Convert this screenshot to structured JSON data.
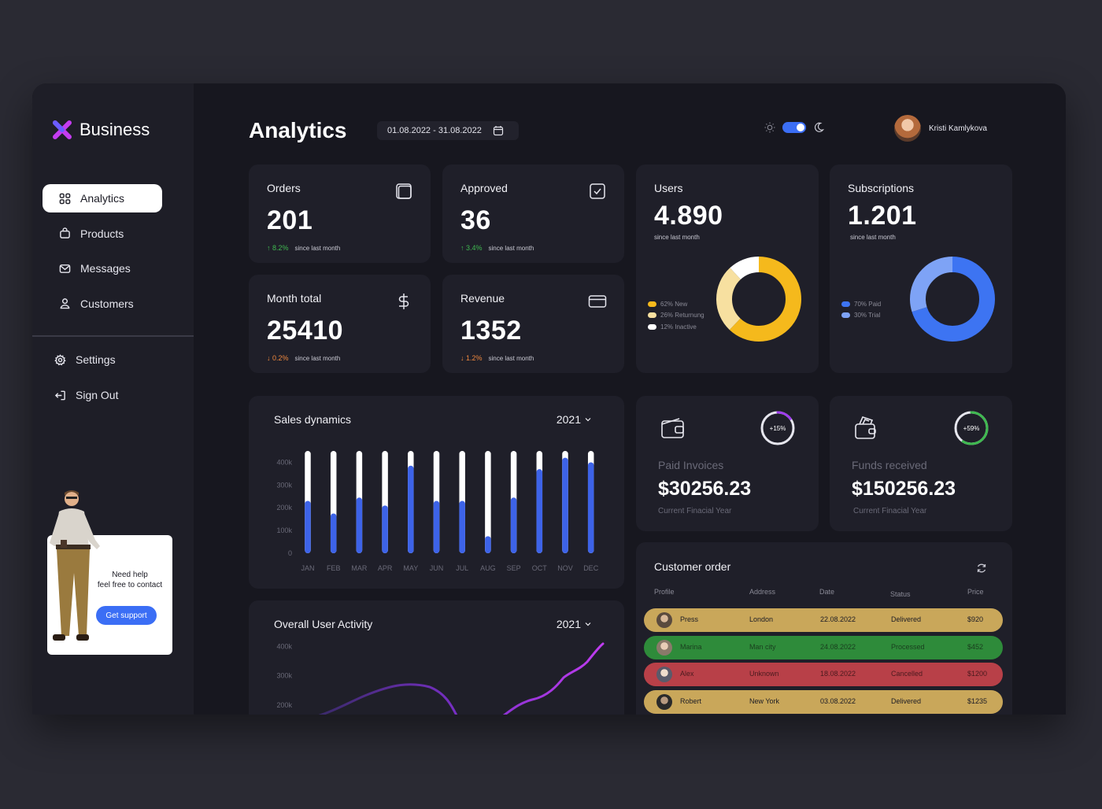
{
  "app": {
    "brand": "Business"
  },
  "sidebar": {
    "items": [
      {
        "label": "Analytics",
        "icon": "grid-icon",
        "active": true
      },
      {
        "label": "Products",
        "icon": "shopping-bag-icon"
      },
      {
        "label": "Messages",
        "icon": "mail-icon"
      },
      {
        "label": "Customers",
        "icon": "user-icon"
      }
    ],
    "secondary": [
      {
        "label": "Settings",
        "icon": "gear-icon"
      },
      {
        "label": "Sign Out",
        "icon": "sign-out-icon"
      }
    ],
    "help": {
      "line1": "Need help",
      "line2": "feel free to contact",
      "button": "Get support"
    }
  },
  "header": {
    "title": "Analytics",
    "date_range": "01.08.2022 - 31.08.2022",
    "user_name": "Kristi Kamlykova"
  },
  "stats": {
    "orders": {
      "label": "Orders",
      "value": "201",
      "change": "8.2%",
      "direction": "up",
      "note": "since last month"
    },
    "approved": {
      "label": "Approved",
      "value": "36",
      "change": "3.4%",
      "direction": "up",
      "note": "since last month"
    },
    "month_total": {
      "label": "Month total",
      "value": "25410",
      "change": "0.2%",
      "direction": "down",
      "note": "since last month"
    },
    "revenue": {
      "label": "Revenue",
      "value": "1352",
      "change": "1.2%",
      "direction": "down",
      "note": "since last month"
    },
    "users": {
      "label": "Users",
      "value": "4.890",
      "note": "since last month",
      "legend": [
        "62% New",
        "26% Returnung",
        "12% Inactive"
      ],
      "shares": [
        62,
        26,
        12
      ],
      "colors": [
        "#f5b91c",
        "#f7e0a0",
        "#ffffff"
      ]
    },
    "subscriptions": {
      "label": "Subscriptions",
      "value": "1.201",
      "note": "since last month",
      "legend": [
        "70% Paid",
        "30% Trial"
      ],
      "shares": [
        70,
        30
      ],
      "colors": [
        "#3d74f2",
        "#7ea3f6"
      ]
    }
  },
  "chart_data": [
    {
      "type": "bar",
      "title": "Sales dynamics",
      "filter": "2021",
      "categories": [
        "JAN",
        "FEB",
        "MAR",
        "APR",
        "MAY",
        "JUN",
        "JUL",
        "AUG",
        "SEP",
        "OCT",
        "NOV",
        "DEC"
      ],
      "yticks": [
        "400k",
        "300k",
        "200k",
        "100k",
        "0"
      ],
      "ylim": [
        0,
        450000
      ],
      "values": [
        230000,
        175000,
        245000,
        210000,
        385000,
        230000,
        230000,
        75000,
        245000,
        370000,
        420000,
        400000
      ],
      "track_max": 450000
    },
    {
      "type": "line",
      "title": "Overall User Activity",
      "filter": "2021",
      "yticks": [
        "400k",
        "300k",
        "200k"
      ],
      "ylim": [
        100000,
        450000
      ]
    }
  ],
  "invoices": {
    "paid": {
      "label": "Paid Invoices",
      "value": "$30256.23",
      "note": "Current Finacial Year",
      "ring": "+15%",
      "ring_fraction": 0.15,
      "ring_color": "#a03cf0"
    },
    "funds": {
      "label": "Funds received",
      "value": "$150256.23",
      "note": "Current Finacial Year",
      "ring": "+59%",
      "ring_fraction": 0.59,
      "ring_color": "#3fb950"
    }
  },
  "orders_table": {
    "title": "Customer order",
    "headers": [
      "Profile",
      "Address",
      "Date",
      "Status",
      "Price"
    ],
    "rows": [
      {
        "name": "Press",
        "address": "London",
        "date": "22.08.2022",
        "status": "Delivered",
        "price": "$920",
        "color": "#c9a75a"
      },
      {
        "name": "Marina",
        "address": "Man city",
        "date": "24.08.2022",
        "status": "Processed",
        "price": "$452",
        "color": "#2e8b3a"
      },
      {
        "name": "Alex",
        "address": "Unknown",
        "date": "18.08.2022",
        "status": "Cancelled",
        "price": "$1200",
        "color": "#b84048"
      },
      {
        "name": "Robert",
        "address": "New York",
        "date": "03.08.2022",
        "status": "Delivered",
        "price": "$1235",
        "color": "#c9a75a"
      }
    ]
  }
}
